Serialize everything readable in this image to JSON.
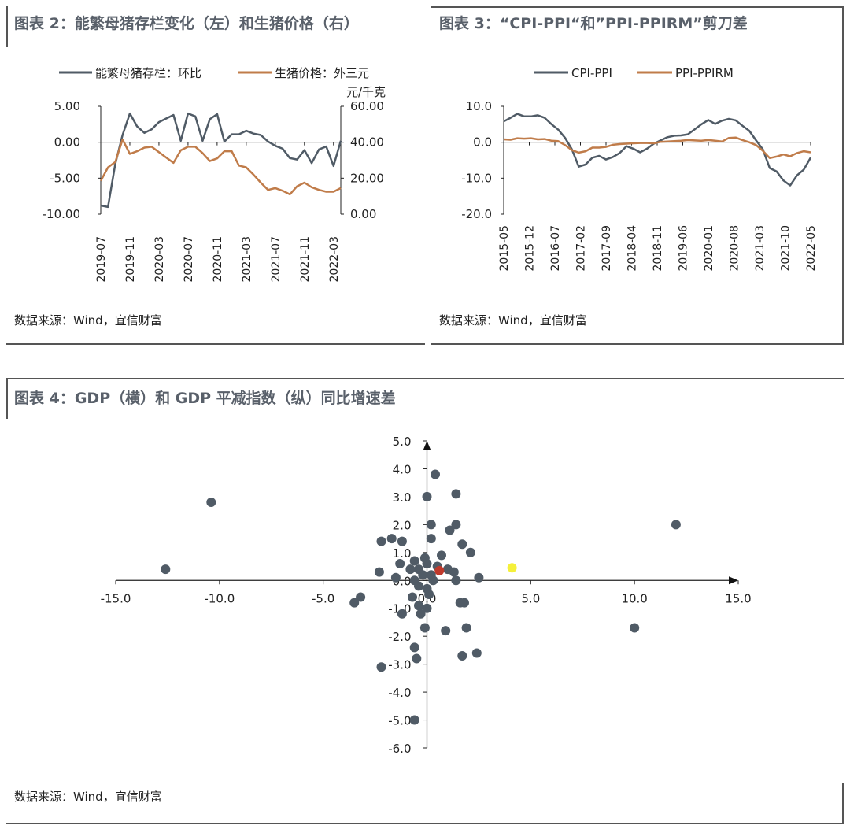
{
  "chart_data": [
    {
      "type": "line",
      "title": "图表 2：能繁母猪存栏变化（左）和生猪价格（右）",
      "source": "数据来源：Wind，宜信财富",
      "x_tick_labels": [
        "2019-07",
        "2019-11",
        "2020-03",
        "2020-07",
        "2020-11",
        "2021-03",
        "2021-07",
        "2021-11",
        "2022-03"
      ],
      "y_left": {
        "ylim": [
          -10,
          5
        ],
        "ticks": [
          "5.00",
          "0.00",
          "-5.00",
          "-10.00"
        ]
      },
      "y_right": {
        "ylim": [
          0,
          60
        ],
        "ticks": [
          "60.00",
          "40.00",
          "20.00",
          "0.00"
        ],
        "unit": "元/千克"
      },
      "series": [
        {
          "name": "能繁母猪存栏：环比",
          "axis": "left",
          "color": "#505b66",
          "values": [
            -8.8,
            -9.0,
            -3.0,
            1.0,
            4.0,
            2.2,
            1.3,
            1.8,
            2.8,
            3.3,
            3.8,
            0.2,
            4.0,
            3.6,
            0.2,
            3.2,
            3.9,
            0.1,
            1.1,
            1.1,
            1.6,
            1.2,
            1.0,
            0.1,
            -0.5,
            -0.9,
            -2.2,
            -2.4,
            -1.1,
            -2.9,
            -1.0,
            -0.6,
            -3.3,
            0.2
          ]
        },
        {
          "name": "生猪价格：外三元",
          "axis": "right",
          "color": "#c07c4a",
          "values": [
            18.5,
            26.0,
            29.0,
            41.5,
            33.5,
            35.0,
            37.0,
            37.5,
            34.5,
            31.5,
            28.5,
            35.5,
            37.5,
            37.5,
            34.0,
            29.5,
            31.0,
            35.0,
            35.0,
            27.0,
            26.0,
            22.0,
            17.5,
            13.5,
            14.5,
            13.0,
            11.0,
            15.5,
            17.5,
            15.0,
            13.5,
            12.5,
            12.5,
            14.5
          ]
        }
      ]
    },
    {
      "type": "line",
      "title": "图表 3：“CPI-PPI“和”PPI-PPIRM”剪刀差",
      "source": "数据来源：Wind，宜信财富",
      "x_tick_labels": [
        "2015-05",
        "2015-12",
        "2016-07",
        "2017-02",
        "2017-09",
        "2018-04",
        "2018-11",
        "2019-06",
        "2020-01",
        "2020-08",
        "2021-03",
        "2021-10",
        "2022-05"
      ],
      "y": {
        "ylim": [
          -20,
          10
        ],
        "ticks": [
          "10.0",
          "0.0",
          "-10.0",
          "-20.0"
        ]
      },
      "series": [
        {
          "name": "CPI-PPI",
          "color": "#505b66",
          "values": [
            5.8,
            6.8,
            7.9,
            7.2,
            7.2,
            7.5,
            6.8,
            5.0,
            3.5,
            1.2,
            -2.0,
            -6.8,
            -6.2,
            -4.3,
            -3.8,
            -4.8,
            -4.1,
            -3.0,
            -1.1,
            -1.8,
            -2.8,
            -1.8,
            -0.4,
            0.5,
            1.4,
            1.8,
            1.9,
            2.2,
            3.6,
            5.0,
            6.2,
            5.1,
            6.0,
            6.5,
            6.1,
            4.6,
            3.2,
            0.5,
            -2.0,
            -7.2,
            -8.1,
            -10.6,
            -12.0,
            -9.2,
            -7.6,
            -4.3
          ]
        },
        {
          "name": "PPI-PPIRM",
          "color": "#c07c4a",
          "values": [
            0.8,
            0.7,
            1.1,
            1.0,
            1.1,
            0.8,
            0.9,
            0.4,
            0.3,
            -0.8,
            -2.2,
            -2.9,
            -2.5,
            -1.5,
            -1.5,
            -1.3,
            -0.7,
            -0.5,
            -0.4,
            -0.3,
            -0.2,
            -0.2,
            -0.3,
            0.1,
            0.2,
            0.3,
            0.4,
            0.6,
            0.5,
            0.4,
            0.6,
            0.4,
            0.2,
            1.2,
            1.3,
            0.6,
            0.0,
            -0.8,
            -2.4,
            -4.4,
            -4.0,
            -3.4,
            -3.9,
            -3.0,
            -2.5,
            -2.8
          ]
        }
      ]
    },
    {
      "type": "scatter",
      "title": "图表 4：GDP（横）和 GDP 平减指数（纵）同比增速差",
      "source": "数据来源：Wind，宜信财富",
      "xlim": [
        -15,
        15
      ],
      "ylim": [
        -6,
        5
      ],
      "x_ticks": [
        "-15.0",
        "-10.0",
        "-5.0",
        "0.0",
        "5.0",
        "10.0",
        "15.0"
      ],
      "y_ticks": [
        "5.0",
        "4.0",
        "3.0",
        "2.0",
        "1.0",
        "0.0",
        "-1.0",
        "-2.0",
        "-3.0",
        "-4.0",
        "-5.0",
        "-6.0"
      ],
      "colors": {
        "default": "#505b66",
        "red": "#c0392b",
        "yellow": "#f5f03a"
      },
      "points": [
        {
          "x": -12.6,
          "y": 0.4
        },
        {
          "x": -10.4,
          "y": 2.8
        },
        {
          "x": 12.0,
          "y": 2.0
        },
        {
          "x": 10.0,
          "y": -1.7
        },
        {
          "x": 0.4,
          "y": 3.8
        },
        {
          "x": 0.0,
          "y": 3.0
        },
        {
          "x": 1.4,
          "y": 3.1
        },
        {
          "x": 0.2,
          "y": 2.0
        },
        {
          "x": 1.4,
          "y": 2.0
        },
        {
          "x": 1.1,
          "y": 1.8
        },
        {
          "x": -1.7,
          "y": 1.5
        },
        {
          "x": -2.2,
          "y": 1.4
        },
        {
          "x": -1.2,
          "y": 1.4
        },
        {
          "x": 0.2,
          "y": 1.5
        },
        {
          "x": 1.7,
          "y": 1.3
        },
        {
          "x": 2.1,
          "y": 1.0
        },
        {
          "x": -0.6,
          "y": 0.7
        },
        {
          "x": -1.3,
          "y": 0.6
        },
        {
          "x": -0.8,
          "y": 0.4
        },
        {
          "x": -0.4,
          "y": 0.4
        },
        {
          "x": 0.0,
          "y": 0.6
        },
        {
          "x": 0.5,
          "y": 0.5
        },
        {
          "x": 1.0,
          "y": 0.4
        },
        {
          "x": -0.2,
          "y": 0.2
        },
        {
          "x": 0.2,
          "y": 0.2
        },
        {
          "x": -0.6,
          "y": 0.0
        },
        {
          "x": 0.3,
          "y": 0.0
        },
        {
          "x": -2.3,
          "y": 0.3
        },
        {
          "x": -1.5,
          "y": 0.1
        },
        {
          "x": 1.3,
          "y": 0.3
        },
        {
          "x": 2.5,
          "y": 0.1
        },
        {
          "x": 1.4,
          "y": 0.0
        },
        {
          "x": -0.4,
          "y": -0.2
        },
        {
          "x": 0.0,
          "y": -0.3
        },
        {
          "x": -0.7,
          "y": -0.6
        },
        {
          "x": -0.4,
          "y": -0.9
        },
        {
          "x": -1.2,
          "y": -1.2
        },
        {
          "x": 0.0,
          "y": -1.0
        },
        {
          "x": -0.3,
          "y": -1.2
        },
        {
          "x": 1.6,
          "y": -0.8
        },
        {
          "x": 1.8,
          "y": -0.8
        },
        {
          "x": -3.2,
          "y": -0.6
        },
        {
          "x": -3.5,
          "y": -0.8
        },
        {
          "x": -0.1,
          "y": -1.7
        },
        {
          "x": 0.9,
          "y": -1.8
        },
        {
          "x": 1.9,
          "y": -1.7
        },
        {
          "x": -0.6,
          "y": -2.4
        },
        {
          "x": -0.5,
          "y": -2.8
        },
        {
          "x": 1.7,
          "y": -2.7
        },
        {
          "x": 2.4,
          "y": -2.6
        },
        {
          "x": -2.2,
          "y": -3.1
        },
        {
          "x": -0.6,
          "y": -5.0
        },
        {
          "x": -0.1,
          "y": 0.8
        },
        {
          "x": 0.1,
          "y": -0.5
        },
        {
          "x": 0.7,
          "y": 0.9
        },
        {
          "x": 4.1,
          "y": 0.45,
          "color": "yellow"
        },
        {
          "x": 0.6,
          "y": 0.35,
          "color": "red"
        }
      ]
    }
  ]
}
